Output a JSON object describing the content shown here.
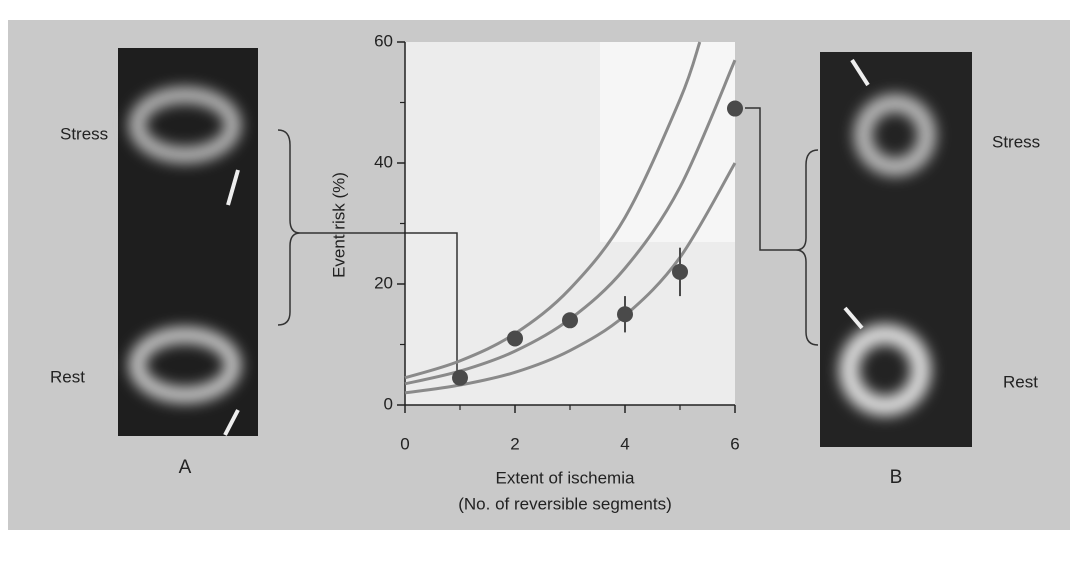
{
  "chart_data": {
    "type": "scatter",
    "xlabel": [
      "Extent of ischemia",
      "(No. of reversible segments)"
    ],
    "ylabel": "Event risk (%)",
    "x": [
      1,
      2,
      3,
      4,
      5,
      6
    ],
    "values": [
      4.5,
      11,
      14,
      15,
      22,
      49
    ],
    "errors": [
      null,
      null,
      null,
      3,
      4,
      null
    ],
    "color": "#4a4a4a",
    "curves": [
      {
        "x": [
          0,
          1,
          2,
          3,
          4,
          5,
          5.36
        ],
        "values": [
          4.5,
          7.3,
          11.8,
          19.2,
          31,
          50.5,
          60
        ],
        "color": "#8a8a8a"
      },
      {
        "x": [
          0,
          1,
          2,
          3,
          4,
          5,
          6
        ],
        "values": [
          3.5,
          5.6,
          8.9,
          14.2,
          22.6,
          36,
          57
        ],
        "color": "#8a8a8a"
      },
      {
        "x": [
          0,
          1,
          2,
          3,
          4,
          5,
          6
        ],
        "values": [
          2,
          3.3,
          5.4,
          9,
          14.8,
          24.4,
          40
        ],
        "color": "#8a8a8a"
      }
    ],
    "xlim": [
      0,
      6
    ],
    "ylim": [
      0,
      60
    ],
    "xticks": [
      0,
      2,
      4,
      6
    ],
    "yticks": [
      0,
      20,
      40,
      60
    ],
    "minor_xticks": [
      1,
      3,
      5
    ],
    "minor_yticks": [
      10,
      30,
      50
    ]
  },
  "panels": [
    {
      "label": "A",
      "top": "Stress",
      "bottom": "Rest"
    },
    {
      "label": "B",
      "top": "Stress",
      "bottom": "Rest"
    }
  ]
}
